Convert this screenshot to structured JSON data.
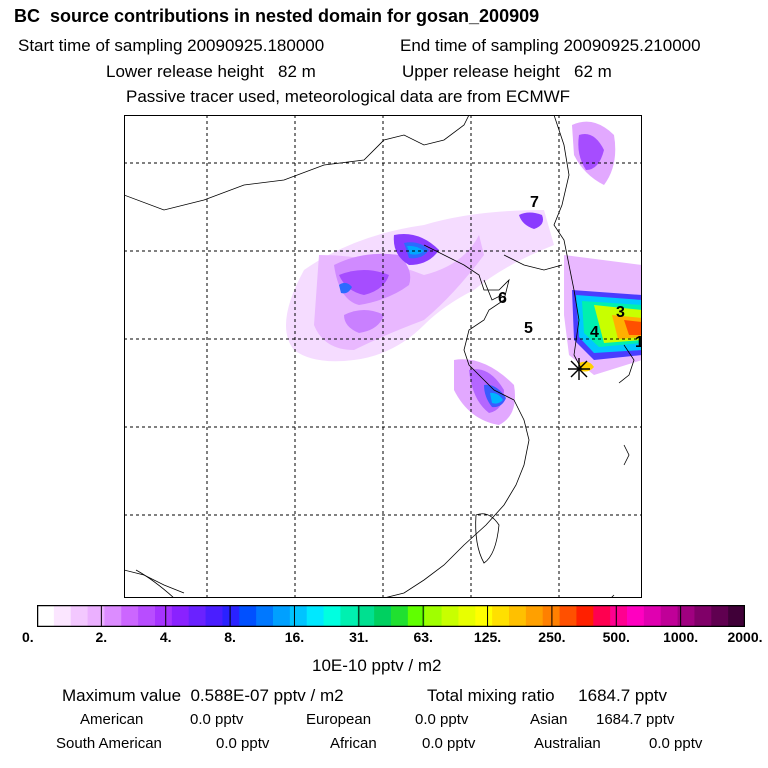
{
  "header": {
    "title": "BC  source contributions in nested domain for gosan_200909",
    "start_time": "Start time of sampling 20090925.180000",
    "end_time": "End time of sampling 20090925.210000",
    "lower_release": "Lower release height   82 m",
    "upper_release": "Upper release height   62 m",
    "tracer_note": "Passive tracer used, meteorological data are from ECMWF"
  },
  "map": {
    "region_labels": [
      "7",
      "6",
      "5",
      "4",
      "3",
      "1"
    ],
    "receptor_marker": "gosan-receptor-star"
  },
  "legend": {
    "colors": [
      "#ffffff",
      "#fbe6ff",
      "#f3c8ff",
      "#ebb0ff",
      "#dc8cff",
      "#cc66ff",
      "#b84dff",
      "#a633ff",
      "#8a22ff",
      "#6a22ff",
      "#4a1eff",
      "#2a22ff",
      "#0050ff",
      "#0078ff",
      "#00a0ff",
      "#00c4ff",
      "#00e8ff",
      "#00ffe0",
      "#00f0b0",
      "#00e090",
      "#00d060",
      "#20e030",
      "#60ff00",
      "#a0ff00",
      "#c8ff00",
      "#e8ff00",
      "#ffff00",
      "#ffe000",
      "#ffc000",
      "#ffa000",
      "#ff8000",
      "#ff5000",
      "#ff2000",
      "#ff0050",
      "#ff0090",
      "#ff00c0",
      "#e000b0",
      "#c00098",
      "#a00080",
      "#800068",
      "#600050",
      "#400038"
    ],
    "tick_labels": [
      "0.",
      "2.",
      "4.",
      "8.",
      "16.",
      "31.",
      "63.",
      "125.",
      "250.",
      "500.",
      "1000.",
      "2000."
    ],
    "unit": "10E-10 pptv / m2"
  },
  "summary": {
    "max_label": "Maximum value  0.588E-07 pptv / m2",
    "total_label": "Total mixing ratio     1684.7 pptv",
    "regions": [
      {
        "name": "American",
        "value": "0.0 pptv"
      },
      {
        "name": "European",
        "value": "0.0 pptv"
      },
      {
        "name": "Asian",
        "value": "1684.7 pptv"
      },
      {
        "name": "South American",
        "value": "0.0 pptv"
      },
      {
        "name": "African",
        "value": "0.0 pptv"
      },
      {
        "name": "Australian",
        "value": "0.0 pptv"
      }
    ]
  }
}
